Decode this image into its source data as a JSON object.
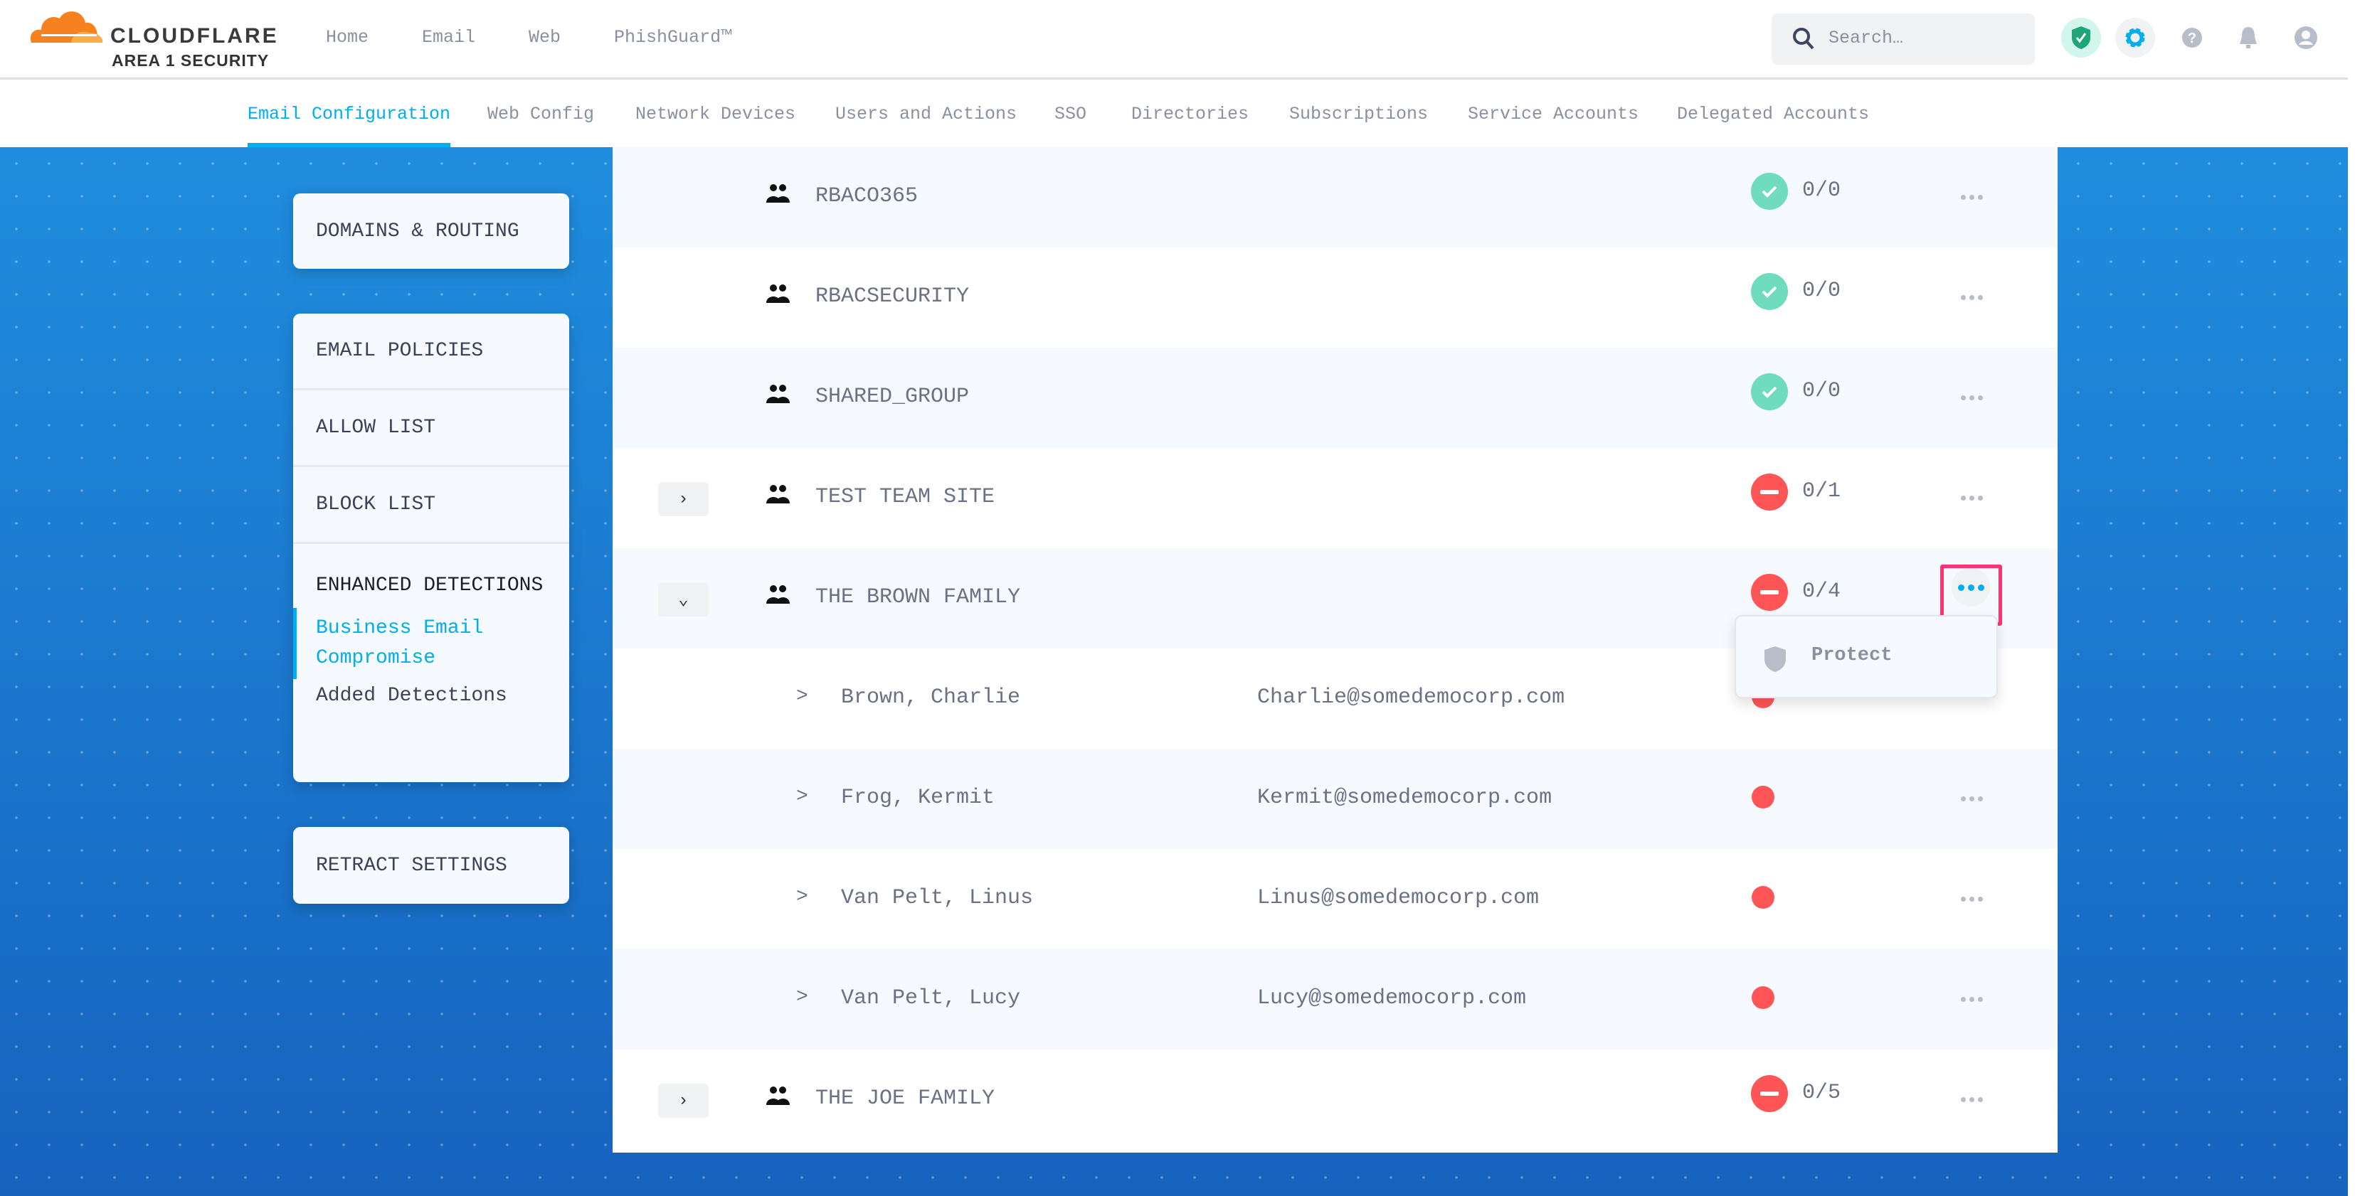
{
  "brand": {
    "name": "CLOUDFLARE",
    "product": "AREA 1 SECURITY",
    "logo_color": "#f6821f"
  },
  "topnav": [
    "Home",
    "Email",
    "Web",
    "PhishGuard™"
  ],
  "search": {
    "placeholder": "Search…"
  },
  "header_icons": [
    "shield-check-icon",
    "gear-icon",
    "help-icon",
    "bell-icon",
    "user-icon"
  ],
  "subnav": {
    "tabs": [
      "Email Configuration",
      "Web Config",
      "Network Devices",
      "Users and Actions",
      "SSO",
      "Directories",
      "Subscriptions",
      "Service Accounts",
      "Delegated Accounts"
    ],
    "active": "Email Configuration"
  },
  "sidebar": {
    "domains": "DOMAINS & ROUTING",
    "policies": [
      "EMAIL POLICIES",
      "ALLOW LIST",
      "BLOCK LIST"
    ],
    "enhanced": "ENHANCED DETECTIONS",
    "enhanced_items": [
      "Business Email Compromise",
      "Added Detections"
    ],
    "enhanced_active": "Business Email Compromise",
    "retract": "RETRACT SETTINGS"
  },
  "groups": [
    {
      "name": "RBACO365",
      "status": "ok",
      "count": "0/0"
    },
    {
      "name": "RBACSECURITY",
      "status": "ok",
      "count": "0/0"
    },
    {
      "name": "SHARED_GROUP",
      "status": "ok",
      "count": "0/0"
    },
    {
      "name": "TEST TEAM SITE",
      "status": "unprotected",
      "count": "0/1",
      "expandable": true
    },
    {
      "name": "THE BROWN FAMILY",
      "status": "unprotected",
      "count": "0/4",
      "expanded": true,
      "members": [
        {
          "name": "Brown, Charlie",
          "email": "Charlie@somedemocorp.com"
        },
        {
          "name": "Frog, Kermit",
          "email": "Kermit@somedemocorp.com"
        },
        {
          "name": "Van Pelt, Linus",
          "email": "Linus@somedemocorp.com"
        },
        {
          "name": "Van Pelt, Lucy",
          "email": "Lucy@somedemocorp.com"
        }
      ]
    },
    {
      "name": "THE JOE FAMILY",
      "status": "unprotected",
      "count": "0/5",
      "expandable": true
    }
  ],
  "member_chevron": ">",
  "context_menu": {
    "items": [
      {
        "label": "Protect",
        "icon": "shield-icon"
      }
    ]
  },
  "colors": {
    "accent": "#00aeef",
    "ok": "#6fdcbd",
    "error": "#ff5556",
    "highlight": "#ff336e"
  }
}
